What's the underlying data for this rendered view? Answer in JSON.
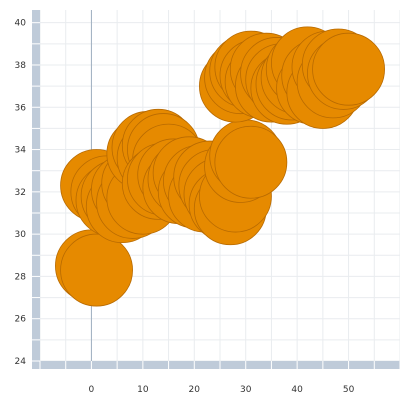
{
  "chart_data": {
    "type": "scatter",
    "title": "",
    "xlabel": "",
    "ylabel": "",
    "xlim": [
      -10,
      60
    ],
    "ylim": [
      24,
      40.6
    ],
    "x_ticks": [
      0,
      10,
      20,
      30,
      40,
      50
    ],
    "y_ticks": [
      24,
      26,
      28,
      30,
      32,
      34,
      36,
      38,
      40
    ],
    "grid": true,
    "legend": "none",
    "colors": {
      "bubble_fill": "#E68A00",
      "bubble_stroke": "#B86A00",
      "axis_bar": "#BFCBD9",
      "zero_line": "#9FB0C0",
      "grid": "#E9ECEF"
    },
    "series": [
      {
        "points": [
          [
            0,
            28.5
          ],
          [
            1,
            28.3
          ],
          [
            1,
            32.3
          ],
          [
            3,
            32.0
          ],
          [
            4,
            31.6
          ],
          [
            5,
            31.8
          ],
          [
            6,
            31.3
          ],
          [
            7,
            32.1
          ],
          [
            8,
            31.5
          ],
          [
            9,
            32.4
          ],
          [
            10,
            31.7
          ],
          [
            10,
            33.8
          ],
          [
            11,
            34.1
          ],
          [
            12,
            33.6
          ],
          [
            13,
            34.2
          ],
          [
            14,
            34.0
          ],
          [
            15,
            33.5
          ],
          [
            13,
            32.4
          ],
          [
            14,
            32.6
          ],
          [
            16,
            32.8
          ],
          [
            17,
            32.2
          ],
          [
            18,
            32.6
          ],
          [
            19,
            32.9
          ],
          [
            20,
            32.0
          ],
          [
            21,
            32.5
          ],
          [
            22,
            31.8
          ],
          [
            23,
            32.7
          ],
          [
            24,
            32.3
          ],
          [
            25,
            31.9
          ],
          [
            26,
            31.4
          ],
          [
            27,
            31.2
          ],
          [
            28,
            31.8
          ],
          [
            29,
            33.2
          ],
          [
            30,
            33.7
          ],
          [
            31,
            33.4
          ],
          [
            28,
            37.0
          ],
          [
            29,
            37.4
          ],
          [
            30,
            37.7
          ],
          [
            31,
            37.9
          ],
          [
            32,
            37.5
          ],
          [
            33,
            37.2
          ],
          [
            34,
            37.8
          ],
          [
            35,
            37.0
          ],
          [
            36,
            37.6
          ],
          [
            37,
            37.3
          ],
          [
            38,
            36.9
          ],
          [
            39,
            37.1
          ],
          [
            40,
            37.4
          ],
          [
            41,
            37.8
          ],
          [
            42,
            38.1
          ],
          [
            43,
            36.9
          ],
          [
            44,
            37.5
          ],
          [
            45,
            36.7
          ],
          [
            46,
            37.9
          ],
          [
            47,
            37.2
          ],
          [
            48,
            38.0
          ],
          [
            49,
            37.6
          ],
          [
            50,
            37.8
          ]
        ]
      }
    ]
  }
}
